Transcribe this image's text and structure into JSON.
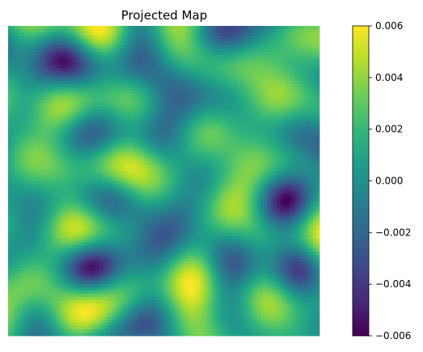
{
  "chart_data": {
    "type": "heatmap",
    "title": "Projected Map",
    "xlabel": "",
    "ylabel": "",
    "axes_visible": false,
    "colormap": "viridis",
    "colorbar": {
      "vmin": -0.006,
      "vmax": 0.006,
      "ticks": [
        {
          "value": -0.006,
          "label": "−0.006"
        },
        {
          "value": -0.004,
          "label": "−0.004"
        },
        {
          "value": -0.002,
          "label": "−0.002"
        },
        {
          "value": 0.0,
          "label": "0.000"
        },
        {
          "value": 0.002,
          "label": "0.002"
        },
        {
          "value": 0.004,
          "label": "0.004"
        },
        {
          "value": 0.006,
          "label": "0.006"
        }
      ]
    },
    "colors": {
      "viridis_stops": [
        "#440154",
        "#482878",
        "#3e4989",
        "#31688e",
        "#26828e",
        "#1f9e89",
        "#35b779",
        "#6ece58",
        "#b5de2b",
        "#fde725"
      ]
    }
  }
}
